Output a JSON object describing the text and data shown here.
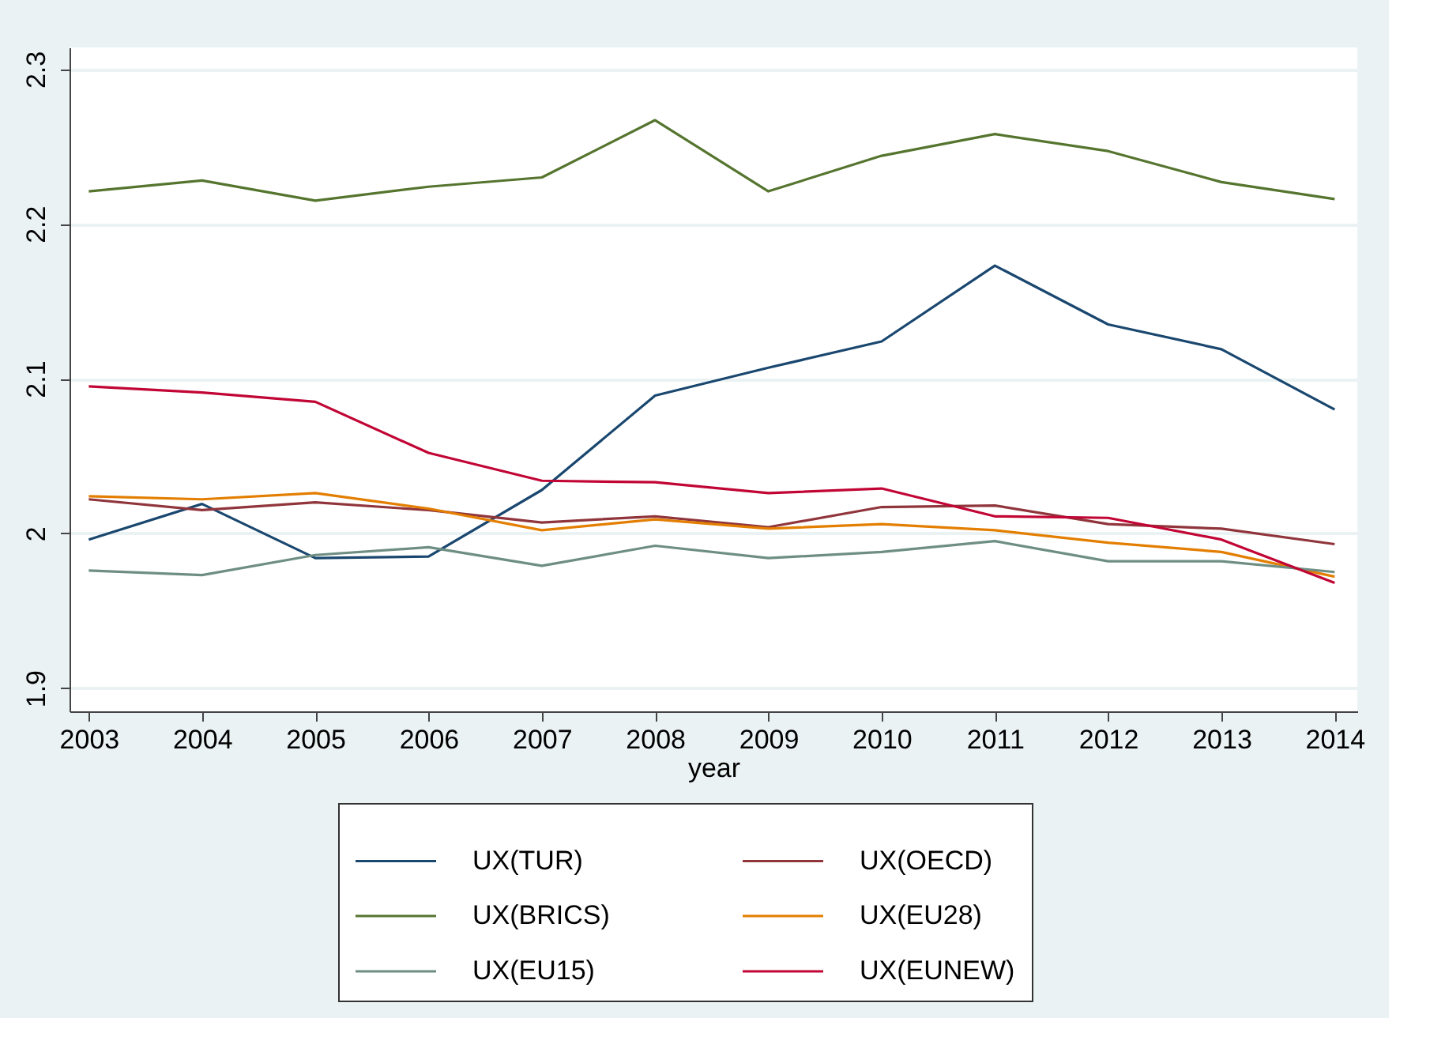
{
  "chart_data": {
    "type": "line",
    "xlabel": "year",
    "x": [
      2003,
      2004,
      2005,
      2006,
      2007,
      2008,
      2009,
      2010,
      2011,
      2012,
      2013,
      2014
    ],
    "xlim": [
      2002.83,
      2014.2
    ],
    "xticks": [
      2003,
      2004,
      2005,
      2006,
      2007,
      2008,
      2009,
      2010,
      2011,
      2012,
      2013,
      2014
    ],
    "ylim": [
      1.885,
      2.314
    ],
    "yticks": [
      1.9,
      2,
      2.1,
      2.2,
      2.3
    ],
    "grid": "y",
    "legend": "bottom",
    "marker": "none",
    "line_style": "solid",
    "series": [
      {
        "name": "UX(TUR)",
        "color": "#1a476f",
        "values": [
          1.996,
          2.019,
          1.984,
          1.985,
          2.028,
          2.089,
          2.107,
          2.124,
          2.173,
          2.135,
          2.119,
          2.08
        ]
      },
      {
        "name": "UX(OECD)",
        "color": "#90353b",
        "values": [
          2.022,
          2.015,
          2.02,
          2.015,
          2.007,
          2.011,
          2.004,
          2.017,
          2.018,
          2.006,
          2.003,
          1.993
        ]
      },
      {
        "name": "UX(BRICS)",
        "color": "#55752f",
        "values": [
          2.221,
          2.228,
          2.215,
          2.224,
          2.23,
          2.267,
          2.221,
          2.244,
          2.258,
          2.247,
          2.227,
          2.216
        ]
      },
      {
        "name": "UX(EU28)",
        "color": "#e37e00",
        "values": [
          2.024,
          2.022,
          2.026,
          2.016,
          2.002,
          2.009,
          2.003,
          2.006,
          2.002,
          1.994,
          1.988,
          1.972
        ]
      },
      {
        "name": "UX(EU15)",
        "color": "#6e8e84",
        "values": [
          1.976,
          1.973,
          1.986,
          1.991,
          1.979,
          1.992,
          1.984,
          1.988,
          1.995,
          1.982,
          1.982,
          1.975
        ]
      },
      {
        "name": "UX(EUNEW)",
        "color": "#c10534",
        "values": [
          2.095,
          2.091,
          2.085,
          2.052,
          2.034,
          2.033,
          2.026,
          2.029,
          2.011,
          2.01,
          1.996,
          1.968
        ]
      }
    ]
  }
}
